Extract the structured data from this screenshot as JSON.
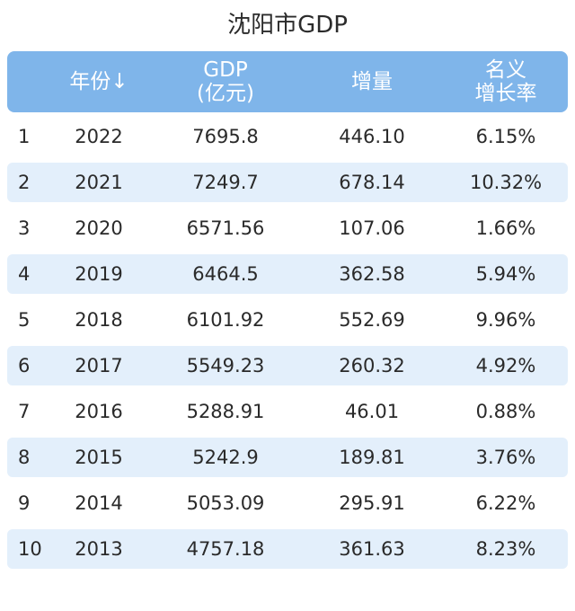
{
  "title": "沈阳市GDP",
  "chart_data": {
    "type": "table",
    "title": "沈阳市GDP",
    "columns": [
      "",
      "年份↓",
      "GDP\n(亿元)",
      "增量",
      "名义\n增长率"
    ],
    "rows": [
      {
        "idx": "1",
        "year": "2022",
        "gdp": "7695.8",
        "increase": "446.10",
        "rate": "6.15%"
      },
      {
        "idx": "2",
        "year": "2021",
        "gdp": "7249.7",
        "increase": "678.14",
        "rate": "10.32%"
      },
      {
        "idx": "3",
        "year": "2020",
        "gdp": "6571.56",
        "increase": "107.06",
        "rate": "1.66%"
      },
      {
        "idx": "4",
        "year": "2019",
        "gdp": "6464.5",
        "increase": "362.58",
        "rate": "5.94%"
      },
      {
        "idx": "5",
        "year": "2018",
        "gdp": "6101.92",
        "increase": "552.69",
        "rate": "9.96%"
      },
      {
        "idx": "6",
        "year": "2017",
        "gdp": "5549.23",
        "increase": "260.32",
        "rate": "4.92%"
      },
      {
        "idx": "7",
        "year": "2016",
        "gdp": "5288.91",
        "increase": "46.01",
        "rate": "0.88%"
      },
      {
        "idx": "8",
        "year": "2015",
        "gdp": "5242.9",
        "increase": "189.81",
        "rate": "3.76%"
      },
      {
        "idx": "9",
        "year": "2014",
        "gdp": "5053.09",
        "increase": "295.91",
        "rate": "6.22%"
      },
      {
        "idx": "10",
        "year": "2013",
        "gdp": "4757.18",
        "increase": "361.63",
        "rate": "8.23%"
      }
    ]
  },
  "colors": {
    "header_bg": "#7fb5ea",
    "header_text": "#ffffff",
    "alt_row_bg": "#e3effb",
    "text": "#2a2a2a"
  }
}
